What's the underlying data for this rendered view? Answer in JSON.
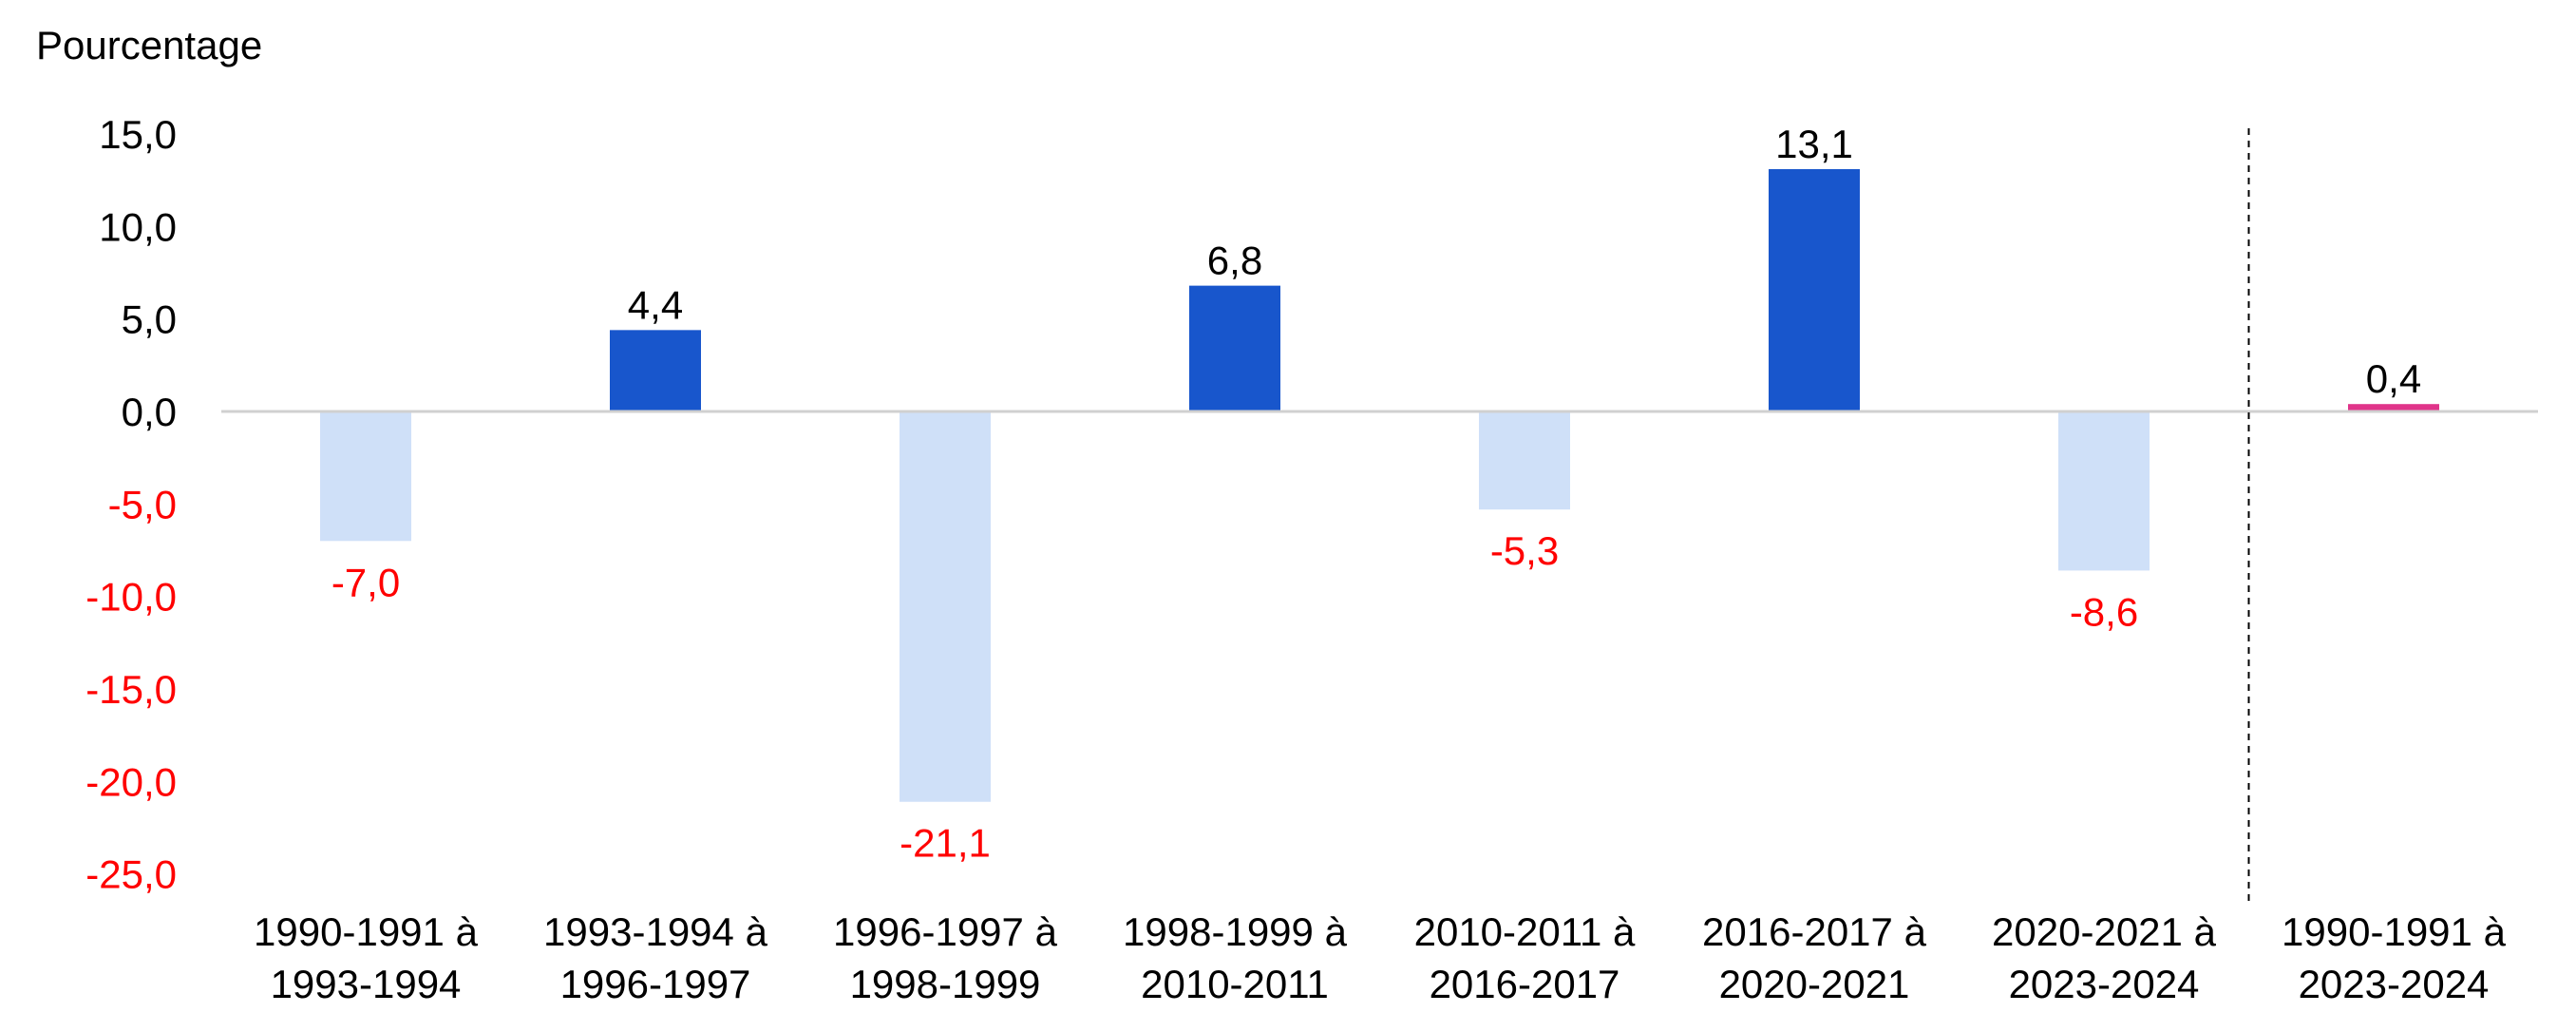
{
  "chart_data": {
    "type": "bar",
    "ylabel": "Pourcentage",
    "ylim": [
      -25,
      15
    ],
    "yticks": [
      "15,0",
      "10,0",
      "5,0",
      "0,0",
      "-5,0",
      "-10,0",
      "-15,0",
      "-20,0",
      "-25,0"
    ],
    "ytick_values": [
      15,
      10,
      5,
      0,
      -5,
      -10,
      -15,
      -20,
      -25
    ],
    "categories": [
      [
        "1990-1991 à",
        "1993-1994"
      ],
      [
        "1993-1994 à",
        "1996-1997"
      ],
      [
        "1996-1997 à",
        "1998-1999"
      ],
      [
        "1998-1999 à",
        "2010-2011"
      ],
      [
        "2010-2011 à",
        "2016-2017"
      ],
      [
        "2016-2017 à",
        "2020-2021"
      ],
      [
        "2020-2021 à",
        "2023-2024"
      ],
      [
        "1990-1991 à",
        "2023-2024"
      ]
    ],
    "values": [
      -7.0,
      4.4,
      -21.1,
      6.8,
      -5.3,
      13.1,
      -8.6,
      0.4
    ],
    "data_labels": [
      "-7,0",
      "4,4",
      "-21,1",
      "6,8",
      "-5,3",
      "13,1",
      "-8,6",
      "0,4"
    ],
    "legend": "none",
    "grid": false,
    "separator_before_last": true,
    "colors": {
      "positive": "#1856cc",
      "negative": "#cfe0f8",
      "overall": "#e0348a",
      "negative_text": "#ff0000",
      "positive_text": "#000000",
      "axis": "#d0d0d0",
      "separator": "#000000"
    }
  }
}
